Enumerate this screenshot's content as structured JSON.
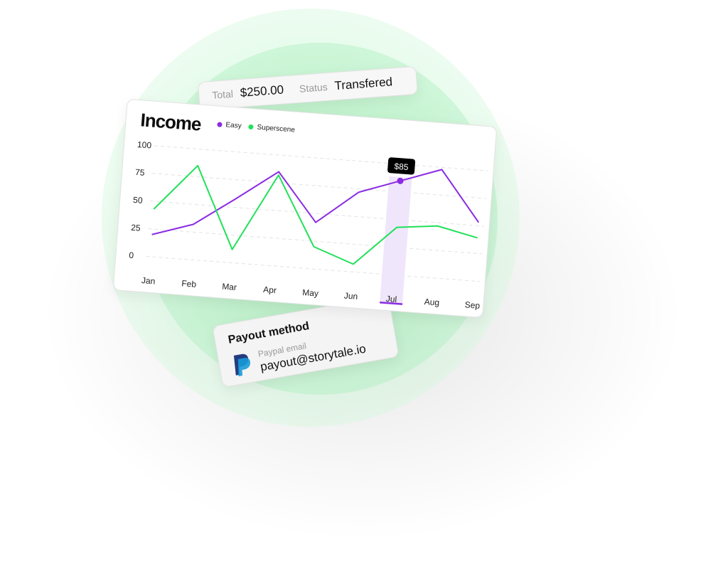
{
  "summary": {
    "total_label": "Total",
    "total_value": "$250.00",
    "status_label": "Status",
    "status_value": "Transfered"
  },
  "payout": {
    "title": "Payout method",
    "email_label": "Paypal email",
    "email": "payout@storytale.io",
    "icon": "paypal-icon"
  },
  "colors": {
    "easy": "#8a2be2",
    "superscene": "#22e05a",
    "highlight": "#efe6fb",
    "tooltip_bg": "#000000"
  },
  "chart_data": {
    "type": "line",
    "title": "Income",
    "categories": [
      "Jan",
      "Feb",
      "Mar",
      "Apr",
      "May",
      "Jun",
      "Jul",
      "Aug",
      "Sep"
    ],
    "y_ticks": [
      0,
      25,
      50,
      75,
      100
    ],
    "ylim": [
      0,
      100
    ],
    "grid": true,
    "legend_position": "top",
    "series": [
      {
        "name": "Easy",
        "values": [
          20,
          32,
          58,
          85,
          42,
          72,
          85,
          98,
          53
        ]
      },
      {
        "name": "Superscene",
        "values": [
          43,
          85,
          12,
          82,
          20,
          7,
          43,
          47,
          39
        ]
      }
    ],
    "highlight": {
      "category": "Jul",
      "series": "Easy",
      "label": "$85"
    }
  }
}
